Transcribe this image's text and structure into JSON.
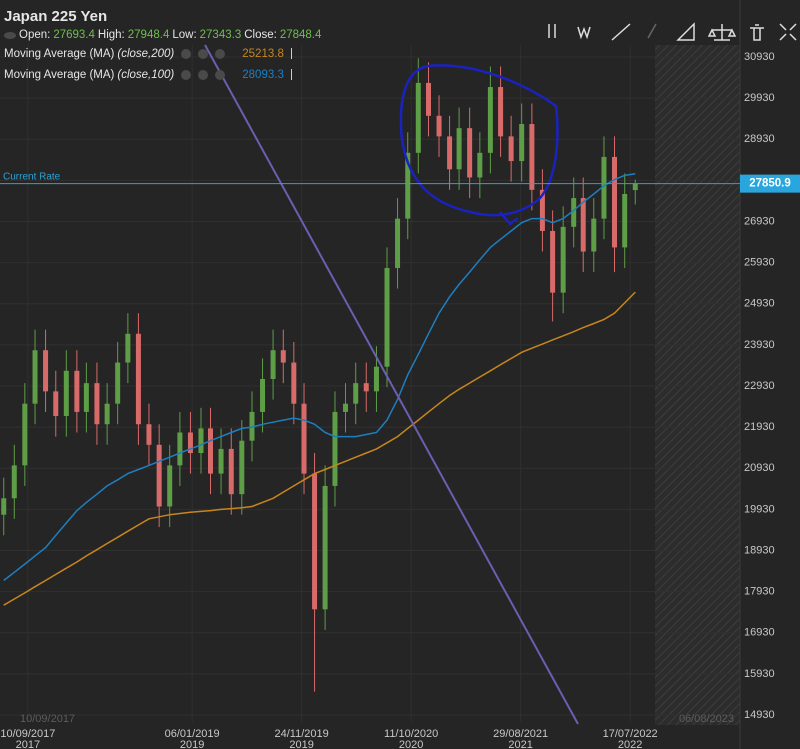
{
  "chart_data": {
    "type": "candlestick",
    "title": "Japan 225 Yen",
    "ohlc_labels": {
      "open": "Open:",
      "high": "High:",
      "low": "Low:",
      "close": "Close:"
    },
    "x": [
      "2017-07-01",
      "2017-08-01",
      "2017-09-01",
      "2017-10-01",
      "2017-11-01",
      "2017-12-01",
      "2018-01-01",
      "2018-02-01",
      "2018-03-01",
      "2018-04-01",
      "2018-05-01",
      "2018-06-01",
      "2018-07-01",
      "2018-08-01",
      "2018-09-01",
      "2018-10-01",
      "2018-11-01",
      "2018-12-01",
      "2019-01-01",
      "2019-02-01",
      "2019-03-01",
      "2019-04-01",
      "2019-05-01",
      "2019-06-01",
      "2019-07-01",
      "2019-08-01",
      "2019-09-01",
      "2019-10-01",
      "2019-11-01",
      "2019-12-01",
      "2020-01-01",
      "2020-02-01",
      "2020-03-01",
      "2020-04-01",
      "2020-05-01",
      "2020-06-01",
      "2020-07-01",
      "2020-08-01",
      "2020-09-01",
      "2020-10-01",
      "2020-11-01",
      "2020-12-01",
      "2021-01-01",
      "2021-02-01",
      "2021-03-01",
      "2021-04-01",
      "2021-05-01",
      "2021-06-01",
      "2021-07-01",
      "2021-08-01",
      "2021-09-01",
      "2021-10-01",
      "2021-11-01",
      "2021-12-01",
      "2022-01-01",
      "2022-02-01",
      "2022-03-01",
      "2022-04-01",
      "2022-05-01",
      "2022-06-01",
      "2022-07-01",
      "2022-08-01"
    ],
    "open": [
      19800,
      20200,
      21000,
      22500,
      23800,
      22800,
      22200,
      23300,
      22300,
      23000,
      22000,
      22500,
      23500,
      24200,
      22000,
      21500,
      20000,
      21000,
      21800,
      21300,
      21900,
      20800,
      21400,
      20300,
      21600,
      22300,
      23100,
      23800,
      23500,
      22500,
      20800,
      17500,
      20500,
      22300,
      22500,
      23000,
      22800,
      23400,
      25800,
      27000,
      28600,
      30300,
      29500,
      29000,
      28200,
      29200,
      28000,
      28600,
      30200,
      29000,
      28400,
      29300,
      27700,
      26700,
      25200,
      26800,
      27500,
      26200,
      27000,
      28500,
      26300,
      27693.4
    ],
    "high": [
      20700,
      21500,
      23000,
      24300,
      24300,
      23300,
      23800,
      23800,
      23500,
      23500,
      23000,
      24000,
      24700,
      24700,
      22500,
      22000,
      21500,
      22300,
      22300,
      22400,
      22400,
      21900,
      21900,
      22100,
      22800,
      23600,
      24300,
      24300,
      24000,
      23000,
      21300,
      21000,
      22800,
      23000,
      23500,
      23500,
      23900,
      26300,
      27500,
      29100,
      30900,
      30800,
      30000,
      29500,
      29700,
      29700,
      29100,
      30700,
      30700,
      29500,
      29800,
      29800,
      28200,
      27200,
      27300,
      28000,
      28000,
      27500,
      29000,
      29000,
      28100,
      27948.4
    ],
    "low": [
      19300,
      19700,
      20500,
      22000,
      22300,
      21700,
      21700,
      21800,
      21800,
      21500,
      21500,
      22000,
      23000,
      21500,
      21000,
      19500,
      19500,
      20500,
      20800,
      20800,
      20300,
      20300,
      19800,
      19800,
      21100,
      21800,
      22600,
      23000,
      22000,
      20300,
      15500,
      17000,
      20000,
      21800,
      22000,
      22300,
      22300,
      22900,
      25300,
      26500,
      28100,
      29000,
      28500,
      27700,
      27700,
      27500,
      27500,
      28100,
      28500,
      27900,
      27900,
      27200,
      26200,
      24500,
      24700,
      26300,
      25700,
      25700,
      26500,
      25700,
      25800,
      27343.3
    ],
    "close": [
      20200,
      21000,
      22500,
      23800,
      22800,
      22200,
      23300,
      22300,
      23000,
      22000,
      22500,
      23500,
      24200,
      22000,
      21500,
      20000,
      21000,
      21800,
      21300,
      21900,
      20800,
      21400,
      20300,
      21600,
      22300,
      23100,
      23800,
      23500,
      22500,
      20800,
      17500,
      20500,
      22300,
      22500,
      23000,
      22800,
      23400,
      25800,
      27000,
      28600,
      30300,
      29500,
      29000,
      28200,
      29200,
      28000,
      28600,
      30200,
      29000,
      28400,
      29300,
      27700,
      26700,
      25200,
      26800,
      27500,
      26200,
      27000,
      28500,
      26300,
      27600,
      27848.4
    ],
    "up_color": "#5e9e46",
    "down_color": "#d86a6a",
    "overlays": [
      {
        "name": "Moving Average (MA)",
        "params": "(close,200)",
        "color": "#c8861c",
        "values": [
          17600,
          17750,
          17900,
          18050,
          18200,
          18350,
          18500,
          18650,
          18800,
          18950,
          19100,
          19250,
          19400,
          19550,
          19700,
          19750,
          19800,
          19830,
          19860,
          19880,
          19900,
          19930,
          19950,
          19970,
          20000,
          20100,
          20200,
          20350,
          20500,
          20650,
          20800,
          20900,
          21000,
          21100,
          21200,
          21300,
          21400,
          21550,
          21700,
          21900,
          22100,
          22300,
          22500,
          22700,
          22850,
          23000,
          23150,
          23300,
          23450,
          23600,
          23750,
          23850,
          23950,
          24050,
          24150,
          24250,
          24350,
          24450,
          24550,
          24700,
          24950,
          25213.8
        ]
      },
      {
        "name": "Moving Average (MA)",
        "params": "(close,100)",
        "color": "#1e7fc0",
        "values": [
          18200,
          18400,
          18600,
          18800,
          19000,
          19300,
          19600,
          19900,
          20100,
          20300,
          20500,
          20650,
          20800,
          20900,
          21000,
          21100,
          21200,
          21300,
          21400,
          21500,
          21600,
          21700,
          21800,
          21900,
          21930,
          22000,
          22050,
          22100,
          22150,
          22100,
          22000,
          21800,
          21700,
          21700,
          21700,
          21750,
          21800,
          22100,
          22600,
          23200,
          23700,
          24200,
          24700,
          25100,
          25400,
          25700,
          26000,
          26300,
          26500,
          26700,
          26900,
          27000,
          27000,
          26900,
          27000,
          27200,
          27400,
          27600,
          27800,
          27950,
          28050,
          28093.3
        ]
      }
    ],
    "current_rate": {
      "label": "Current Rate",
      "value": 27850.9
    },
    "xlim": [
      "2017-06-20",
      "2023-06-05"
    ],
    "xticks": [
      {
        "value": "2017-09-10",
        "label": "10/09/2017",
        "year": "2017"
      },
      {
        "value": "2019-01-06",
        "label": "06/01/2019",
        "year": "2019"
      },
      {
        "value": "2019-11-24",
        "label": "24/11/2019",
        "year": "2019"
      },
      {
        "value": "2020-10-11",
        "label": "11/10/2020",
        "year": "2020"
      },
      {
        "value": "2021-08-29",
        "label": "29/08/2021",
        "year": "2021"
      },
      {
        "value": "2022-07-17",
        "label": "17/07/2022",
        "year": "2022"
      }
    ],
    "range_start_label": "10/09/2017",
    "range_end_label": "06/08/2023",
    "ylim": [
      14760,
      31222
    ],
    "yticks": [
      14930,
      15930,
      16930,
      17930,
      18930,
      19930,
      20930,
      21930,
      22930,
      23930,
      24930,
      25930,
      26930,
      27930,
      28930,
      29930,
      30930
    ],
    "grid": true
  }
}
